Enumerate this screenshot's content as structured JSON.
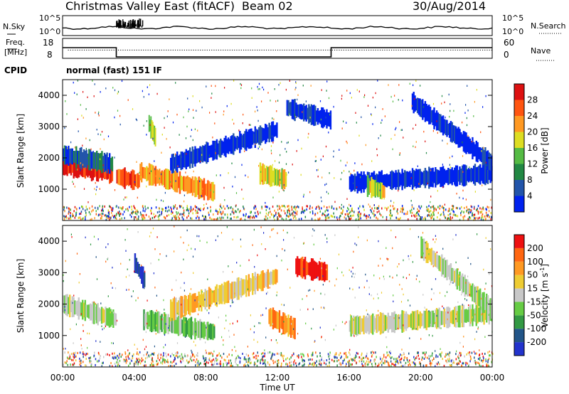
{
  "header": {
    "title": "Christmas Valley East (fitACF)",
    "beam": "Beam 02",
    "date": "30/Aug/2014"
  },
  "top_panels": {
    "nsky": {
      "label": "N.Sky",
      "yticks": [
        "10^5",
        "10^0"
      ],
      "right_label": "N.Search",
      "right_yticks": [
        "10^5",
        "10^0"
      ],
      "dense_hours": [
        3,
        4.5
      ]
    },
    "freq": {
      "label_line1": "Freq.",
      "label_line2": "[MHz]",
      "yticks": [
        "18",
        "8"
      ],
      "right_label": "Nave",
      "right_yticks": [
        "60",
        "0"
      ],
      "freq_mhz": [
        {
          "x0": 0,
          "x1": 3,
          "y": 15.5
        },
        {
          "x0": 3,
          "x1": 15,
          "y": 10
        },
        {
          "x0": 15,
          "x1": 24,
          "y": 15.5
        }
      ],
      "nave": 25
    },
    "cpid": {
      "label": "CPID",
      "value": "normal (fast) 151 IF"
    }
  },
  "chart_data": [
    {
      "type": "heatmap",
      "name": "power",
      "xlabel": "",
      "ylabel": "Slant Range [km]",
      "xlim": [
        0,
        24
      ],
      "ylim": [
        0,
        4500
      ],
      "yticks": [
        1000,
        2000,
        3000,
        4000
      ],
      "colorbar": {
        "label": "Power [dB]",
        "ticks": [
          "4",
          "8",
          "12",
          "16",
          "20",
          "24",
          "28"
        ],
        "colors": [
          "#0022ee",
          "#2255aa",
          "#228844",
          "#55bb44",
          "#dddd22",
          "#ff9922",
          "#ff5511",
          "#dd1111"
        ]
      },
      "features": [
        {
          "x0": 0,
          "x1": 2.8,
          "r0": 1750,
          "r1": 1500,
          "level": 7
        },
        {
          "x0": 0,
          "x1": 2.8,
          "r0": 2100,
          "r1": 1800,
          "level": 1
        },
        {
          "x0": 3,
          "x1": 4.3,
          "r0": 1400,
          "r1": 1250,
          "level": 6
        },
        {
          "x0": 4.3,
          "x1": 8.5,
          "r0": 1550,
          "r1": 900,
          "level": 5
        },
        {
          "x0": 11,
          "x1": 12.5,
          "r0": 1500,
          "r1": 1300,
          "level": 4
        },
        {
          "x0": 12.5,
          "x1": 15,
          "r0": 3600,
          "r1": 3200,
          "level": 0
        },
        {
          "x0": 16,
          "x1": 24,
          "r0": 1200,
          "r1": 1500,
          "level": 0
        },
        {
          "x0": 4.8,
          "x1": 5.2,
          "r0": 3100,
          "r1": 2600,
          "level": 4
        },
        {
          "x0": 19.5,
          "x1": 24,
          "r0": 3800,
          "r1": 1800,
          "level": 0
        },
        {
          "x0": 6,
          "x1": 12,
          "r0": 1800,
          "r1": 2900,
          "level": 0
        },
        {
          "x0": 17,
          "x1": 18,
          "r0": 1100,
          "r1": 900,
          "level": 4
        }
      ]
    },
    {
      "type": "heatmap",
      "name": "velocity",
      "xlabel": "Time UT",
      "ylabel": "Slant Range [km]",
      "xlim": [
        0,
        24
      ],
      "xticks": [
        "00:00",
        "04:00",
        "08:00",
        "12:00",
        "16:00",
        "20:00",
        "00:00"
      ],
      "ylim": [
        0,
        4500
      ],
      "yticks": [
        1000,
        2000,
        3000,
        4000
      ],
      "colorbar": {
        "label": "Velocity [m s^-1]",
        "ticks": [
          "200",
          "100",
          "50",
          "15",
          "-15",
          "-50",
          "-100",
          "-200"
        ],
        "colors": [
          "#2233cc",
          "#225588",
          "#339944",
          "#66cc44",
          "#c8c8c8",
          "#eecc33",
          "#ff9922",
          "#ff6611",
          "#ee1111"
        ]
      },
      "features": [
        {
          "x0": 0,
          "x1": 3,
          "r0": 2000,
          "r1": 1500,
          "level": 4
        },
        {
          "x0": 4.5,
          "x1": 8.5,
          "r0": 1500,
          "r1": 1100,
          "level": 3
        },
        {
          "x0": 4,
          "x1": 4.6,
          "r0": 3300,
          "r1": 2700,
          "level": 0
        },
        {
          "x0": 11.5,
          "x1": 13,
          "r0": 1600,
          "r1": 1200,
          "level": 6
        },
        {
          "x0": 13,
          "x1": 14.8,
          "r0": 3200,
          "r1": 3000,
          "level": 8
        },
        {
          "x0": 16,
          "x1": 24,
          "r0": 1300,
          "r1": 1700,
          "level": 4
        },
        {
          "x0": 20,
          "x1": 24,
          "r0": 3800,
          "r1": 1800,
          "level": 4
        },
        {
          "x0": 6,
          "x1": 12,
          "r0": 1800,
          "r1": 2900,
          "level": 5
        }
      ]
    }
  ]
}
